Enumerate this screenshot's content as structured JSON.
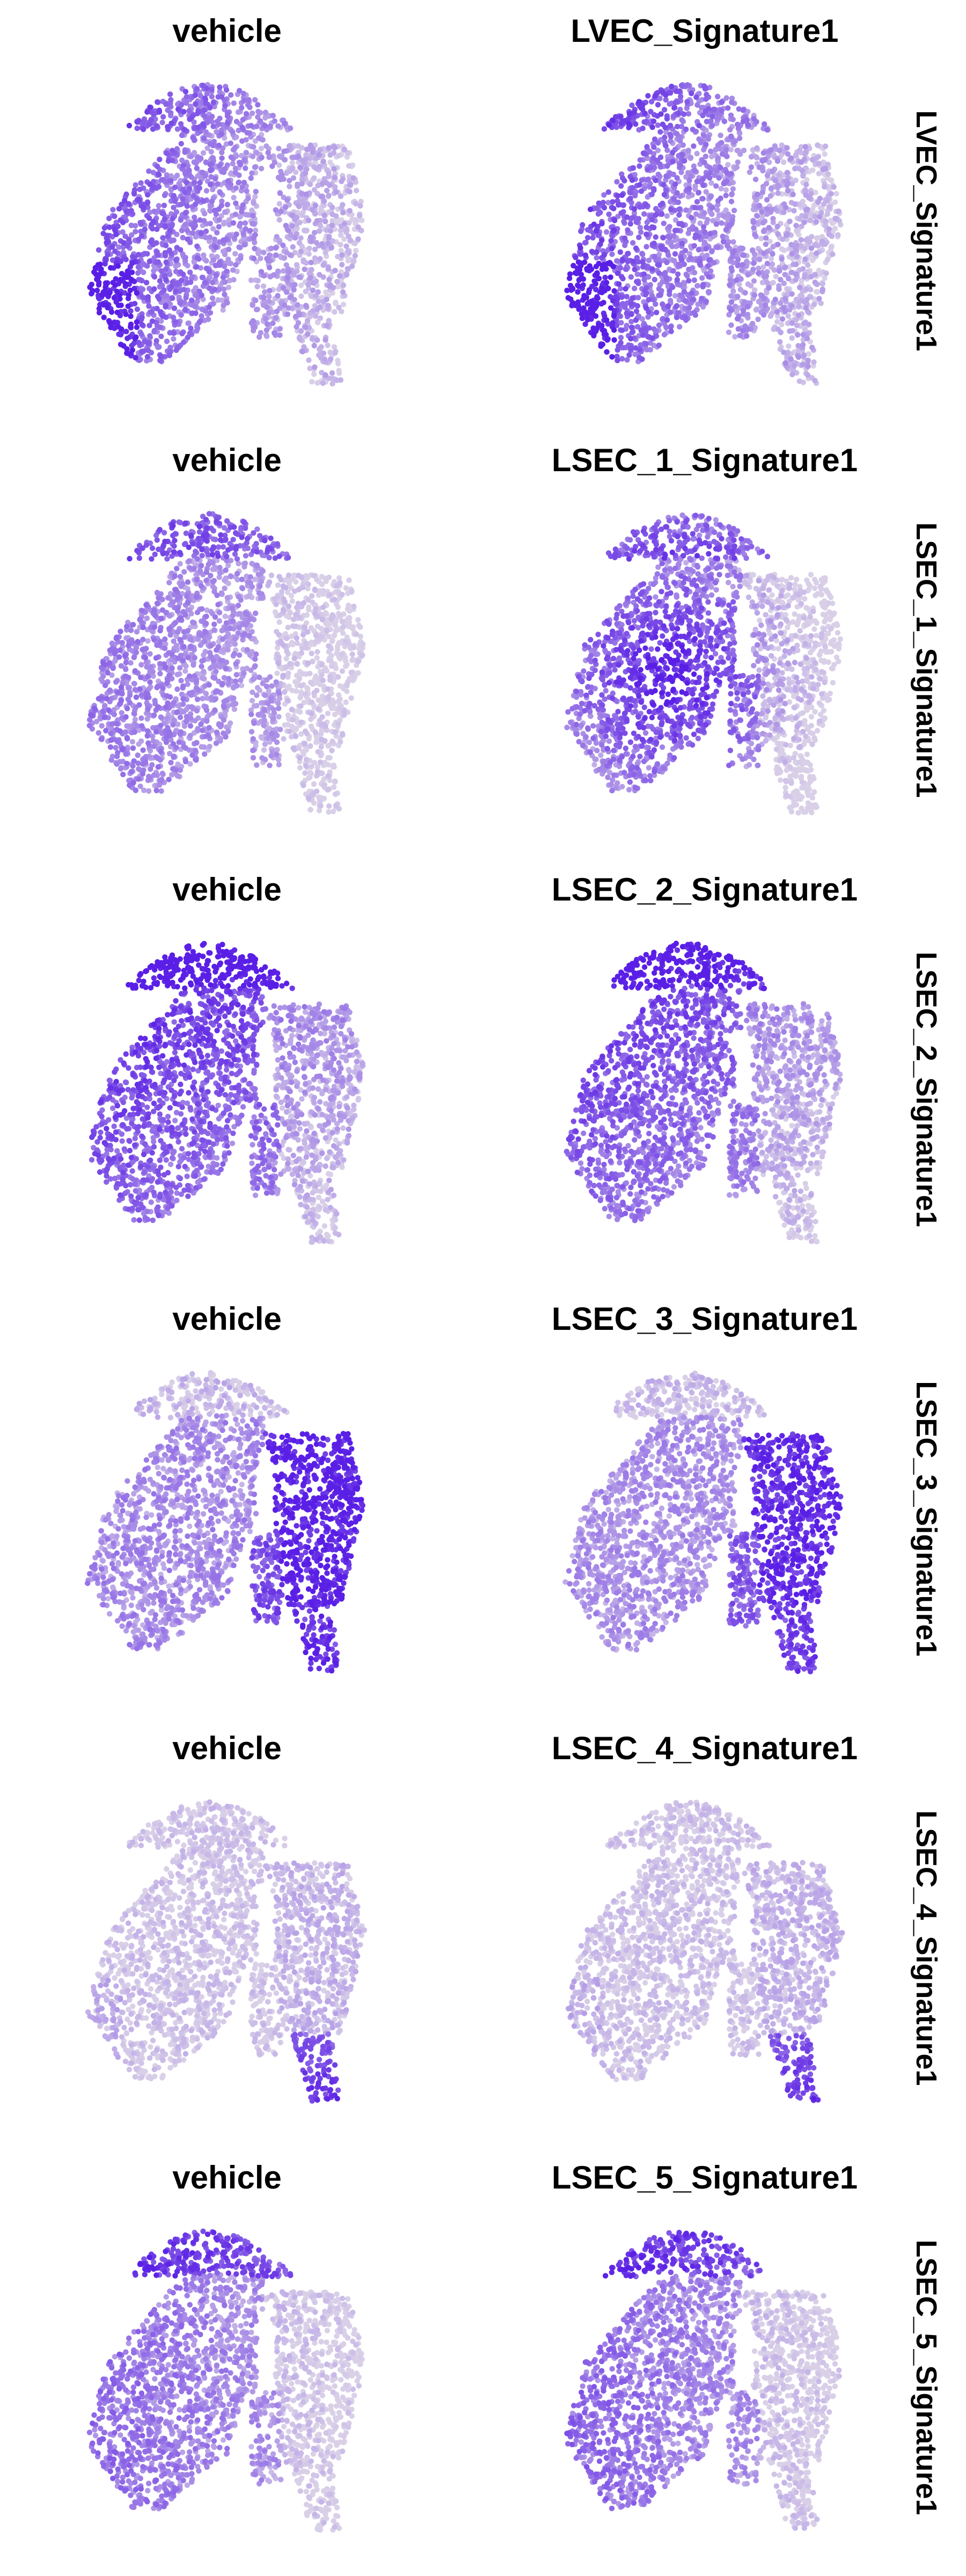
{
  "chart_data": {
    "type": "scatter",
    "description_kind": "faceted UMAP feature plots",
    "color_low": "#d9d0e8",
    "color_high": "#5a1fe6",
    "column_titles_left": "vehicle",
    "rows": [
      {
        "strip_label": "LVEC_Signature1",
        "panels": [
          {
            "title": "vehicle",
            "pattern": "left_high",
            "intensity": 0.55
          },
          {
            "title": "LVEC_Signature1",
            "pattern": "left_high",
            "intensity": 0.65
          }
        ]
      },
      {
        "strip_label": "LSEC_1_Signature1",
        "panels": [
          {
            "title": "vehicle",
            "pattern": "top_left",
            "intensity": 0.45
          },
          {
            "title": "LSEC_1_Signature1",
            "pattern": "center_high",
            "intensity": 0.75
          }
        ]
      },
      {
        "strip_label": "LSEC_2_Signature1",
        "panels": [
          {
            "title": "vehicle",
            "pattern": "top_center",
            "intensity": 0.65
          },
          {
            "title": "LSEC_2_Signature1",
            "pattern": "top_center",
            "intensity": 0.55
          }
        ]
      },
      {
        "strip_label": "LSEC_3_Signature1",
        "panels": [
          {
            "title": "vehicle",
            "pattern": "right_high",
            "intensity": 0.65
          },
          {
            "title": "LSEC_3_Signature1",
            "pattern": "right_high",
            "intensity": 0.55
          }
        ]
      },
      {
        "strip_label": "LSEC_4_Signature1",
        "panels": [
          {
            "title": "vehicle",
            "pattern": "bottom_right",
            "intensity": 0.3
          },
          {
            "title": "LSEC_4_Signature1",
            "pattern": "bottom_right",
            "intensity": 0.3
          }
        ]
      },
      {
        "strip_label": "LSEC_5_Signature1",
        "panels": [
          {
            "title": "vehicle",
            "pattern": "top_left",
            "intensity": 0.6
          },
          {
            "title": "LSEC_5_Signature1",
            "pattern": "top_left",
            "intensity": 0.65
          }
        ]
      }
    ]
  }
}
